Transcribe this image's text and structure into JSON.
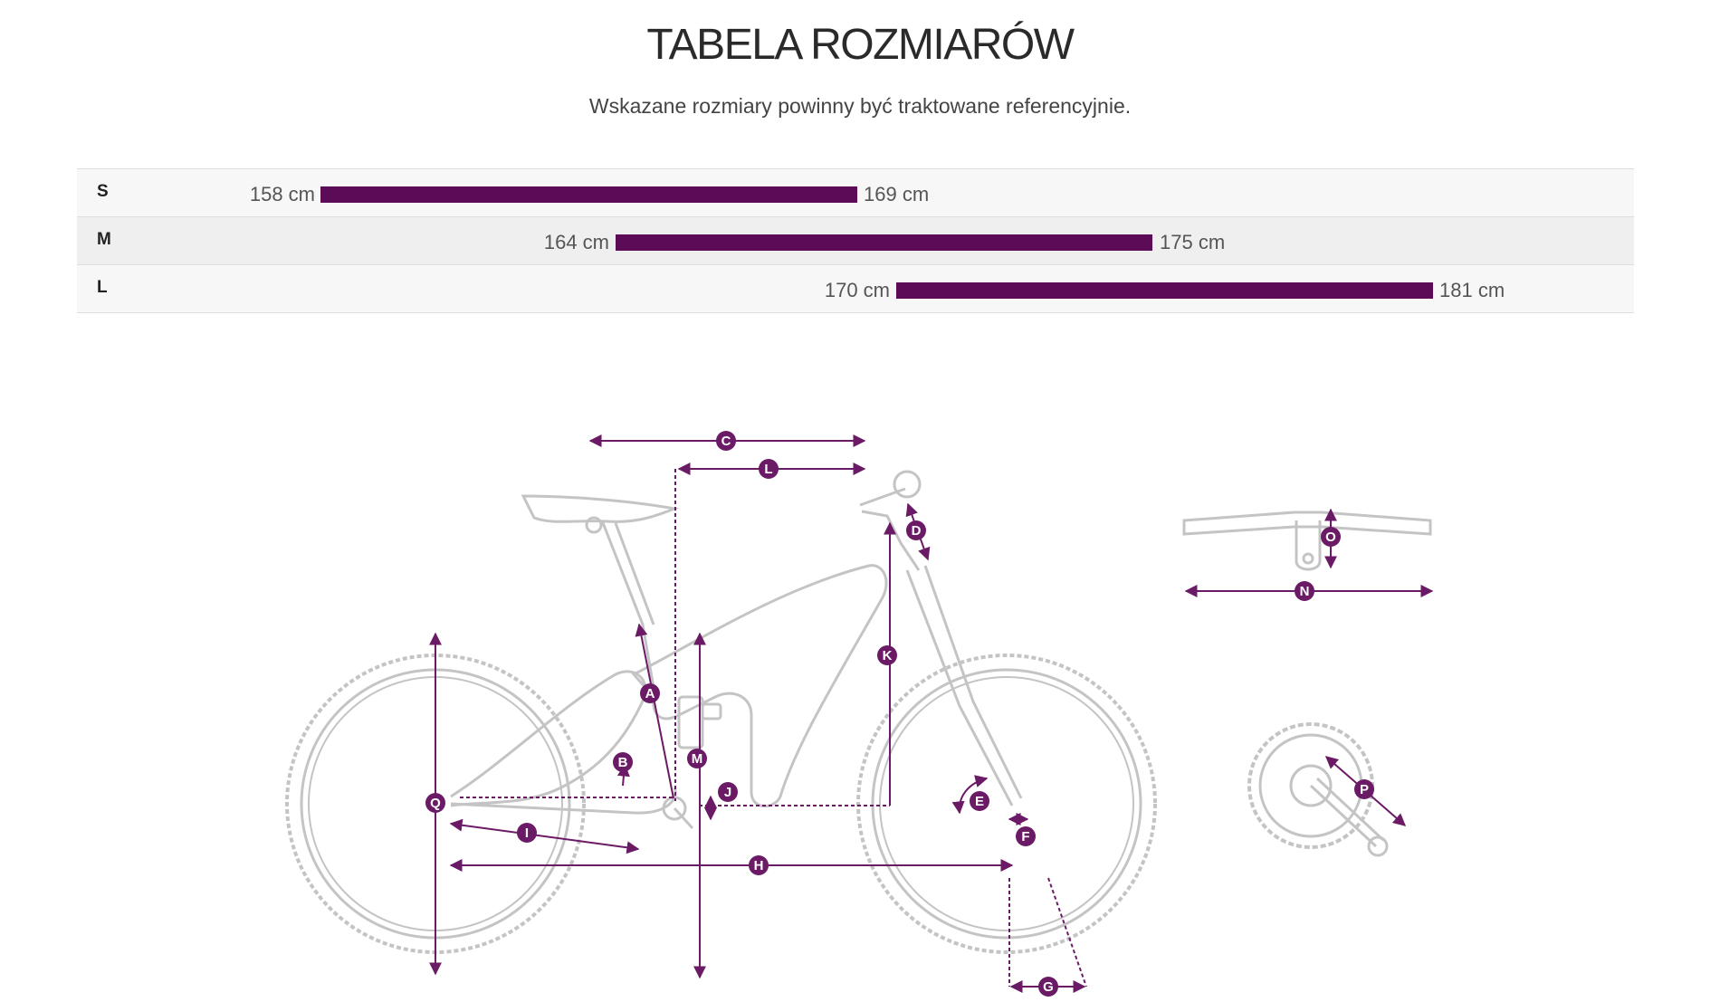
{
  "title": "TABELA ROZMIARÓW",
  "subtitle": "Wskazane rozmiary powinny być traktowane referencyjnie.",
  "sizes": [
    {
      "label": "S",
      "min": "158 cm",
      "max": "169 cm"
    },
    {
      "label": "M",
      "min": "164 cm",
      "max": "175 cm"
    },
    {
      "label": "L",
      "min": "170 cm",
      "max": "181 cm"
    }
  ],
  "colors": {
    "bar": "#5c0c57",
    "marker": "#6b1a66",
    "frame": "#c4c4c4"
  },
  "geometry_markers": {
    "A": "A",
    "B": "B",
    "C": "C",
    "D": "D",
    "E": "E",
    "F": "F",
    "G": "G",
    "H": "H",
    "I": "I",
    "J": "J",
    "K": "K",
    "L": "L",
    "M": "M",
    "N": "N",
    "O": "O",
    "P": "P",
    "Q": "Q"
  }
}
